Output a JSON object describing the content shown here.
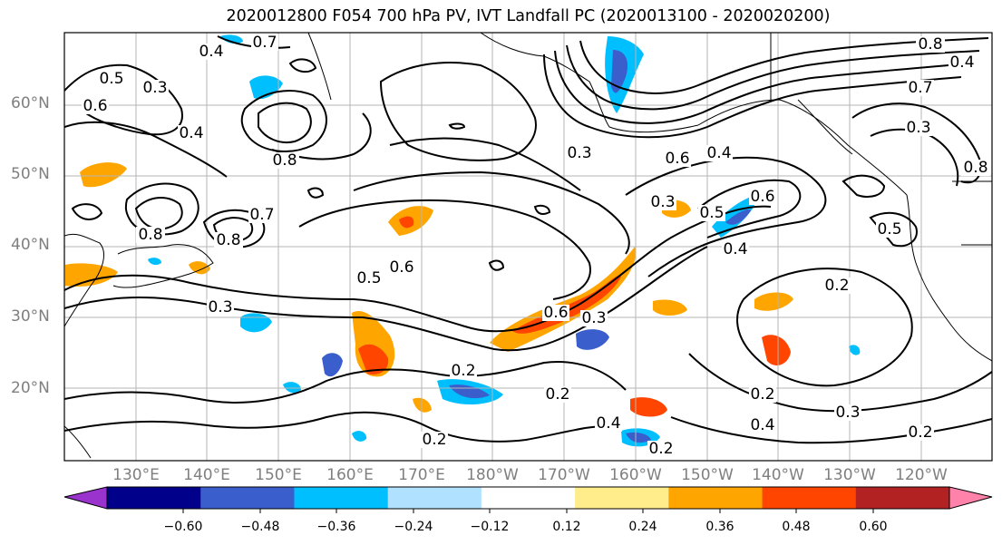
{
  "title": "2020012800 F054 700 hPa PV, IVT Landfall PC (2020013100 - 2020020200)",
  "lat_labels": [
    "60°N",
    "50°N",
    "40°N",
    "30°N",
    "20°N"
  ],
  "lon_labels": [
    "130°E",
    "140°E",
    "150°E",
    "160°E",
    "170°E",
    "180°W",
    "170°W",
    "160°W",
    "150°W",
    "140°W",
    "130°W",
    "120°W"
  ],
  "contour_labels": [
    "0.7",
    "0.4",
    "0.5",
    "0.3",
    "0.6",
    "0.4",
    "0.8",
    "0.8",
    "0.8",
    "0.7",
    "0.3",
    "0.6",
    "0.5",
    "0.3",
    "0.2",
    "0.6",
    "0.2",
    "0.2",
    "0.4",
    "0.2",
    "0.3",
    "0.6",
    "0.4",
    "0.3",
    "0.5",
    "0.6",
    "0.4",
    "0.2",
    "0.2",
    "0.4",
    "0.3",
    "0.2",
    "0.3",
    "0.5",
    "0.8",
    "0.4",
    "0.8",
    "0.7"
  ],
  "colorbar": {
    "ticks": [
      "−0.60",
      "−0.48",
      "−0.36",
      "−0.24",
      "−0.12",
      "0.12",
      "0.24",
      "0.36",
      "0.48",
      "0.60"
    ],
    "colors": [
      "#9a32cd",
      "#00008b",
      "#3a5fcd",
      "#00bfff",
      "#b0e2ff",
      "#ffffff",
      "#ffec8b",
      "#ffa500",
      "#ff4500",
      "#b22222",
      "#ff82ab"
    ]
  }
}
